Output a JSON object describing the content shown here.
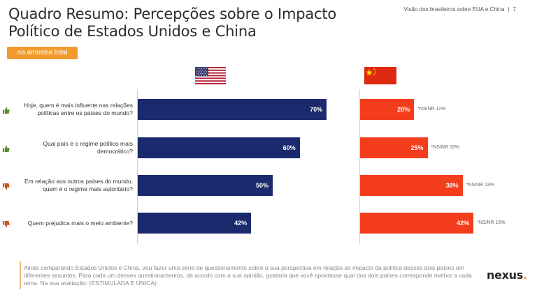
{
  "header": {
    "title": "Quadro Resumo: Percepções sobre o Impacto Político de Estados Unidos e China",
    "section": "Visão dos brasileiros sobre EUA e China",
    "page_number": "7"
  },
  "badge": "na amostra total",
  "footer": {
    "text": "Ainda comparando Estados Unidos e China, vou fazer uma série de questionamento sobre a sua perspectiva em relação ao impacto da política desses dois países em diferentes assuntos. Para cada um desses questionamentos, de acordo com a sua opinião, gostaria que você apontasse qual dos dois países corresponde melhor a cada tema. Na sua avaliação: (ESTIMULADA E ÚNICA)",
    "logo": "nexus",
    "logo_dot": "."
  },
  "colors": {
    "us_bar": "#1a2a6c",
    "cn_bar": "#f43d1c",
    "badge": "#f29a2e",
    "thumb_up": "#5a8a2a",
    "thumb_down": "#c8561a"
  },
  "icons": {
    "us_flag": "us-flag-icon",
    "cn_flag": "china-flag-icon",
    "positive": "thumbs-up-icon",
    "negative": "thumbs-down-icon"
  },
  "chart_data": {
    "type": "bar",
    "orientation": "horizontal",
    "categories": [
      "Hoje, quem é mais influente nas relações políticas entre os países do mundo?",
      "Qual país é o regime político mais democrático?",
      "Em relação aos outros países do mundo, quem é o regime mais autoritário?",
      "Quem prejudica mais o meio ambiente?"
    ],
    "sentiment": [
      "positive",
      "positive",
      "negative",
      "negative"
    ],
    "series": [
      {
        "values": [
          70,
          60,
          50,
          42
        ],
        "labels": [
          "70%",
          "60%",
          "50%",
          "42%"
        ]
      },
      {
        "values": [
          20,
          25,
          38,
          42
        ],
        "labels": [
          "20%",
          "25%",
          "38%",
          "42%"
        ]
      }
    ],
    "ns_nr": [
      "*NS/NR 11%",
      "*NS/NR 15%",
      "*NS/NR 13%",
      "*NS/NR 16%"
    ],
    "xlim": [
      0,
      100
    ]
  }
}
